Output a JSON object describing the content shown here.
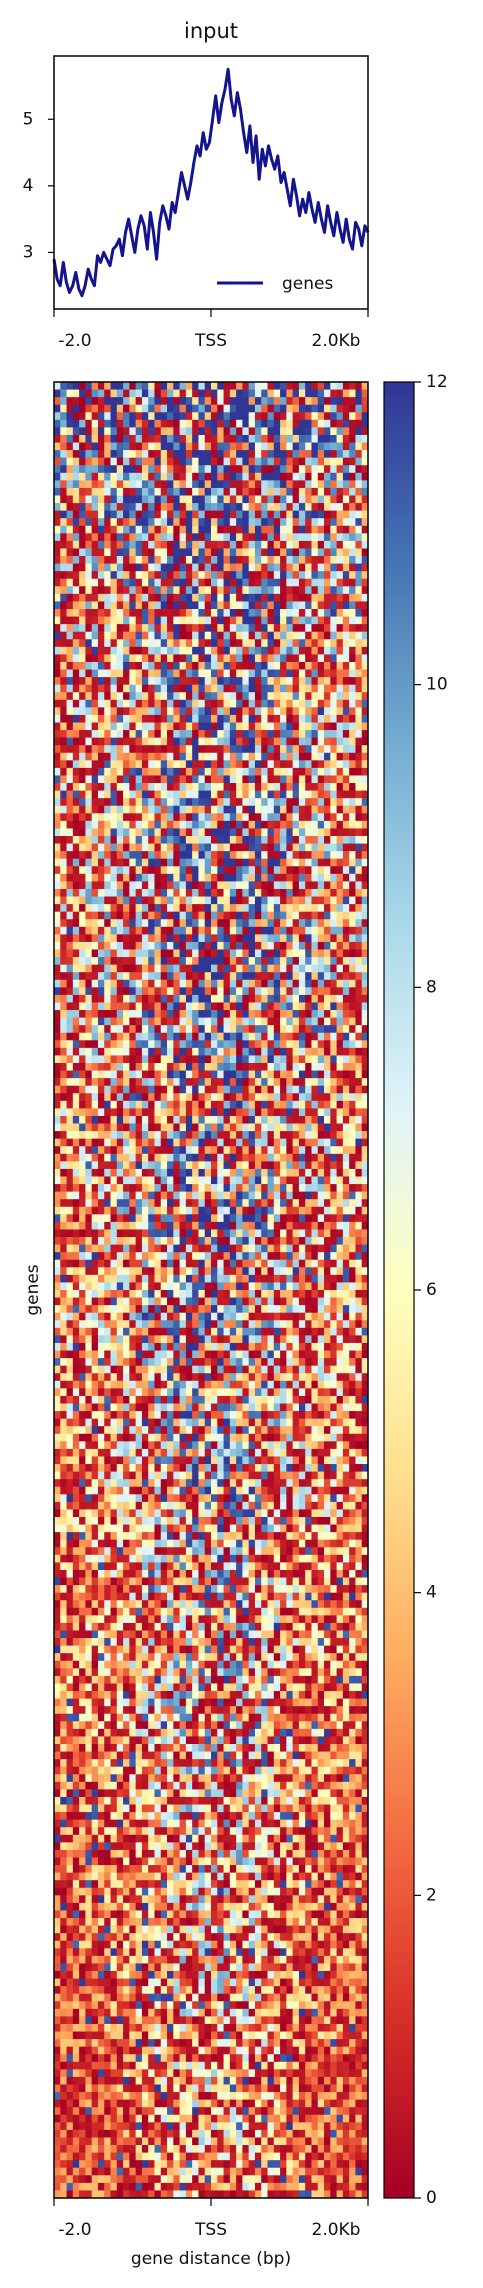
{
  "chart_data": [
    {
      "type": "line",
      "title": "input",
      "x_ticks": [
        "-2.0",
        "TSS",
        "2.0Kb"
      ],
      "y_ticks": [
        3,
        4,
        5
      ],
      "ylim": [
        2.15,
        5.95
      ],
      "legend": "bottom-right",
      "series": [
        {
          "name": "genes",
          "color": "#14148c",
          "y": [
            2.9,
            2.6,
            2.5,
            2.85,
            2.55,
            2.4,
            2.5,
            2.7,
            2.45,
            2.35,
            2.5,
            2.75,
            2.6,
            2.5,
            2.95,
            2.85,
            3.0,
            2.9,
            2.8,
            3.05,
            3.1,
            3.2,
            2.95,
            3.3,
            3.5,
            3.25,
            3.0,
            3.35,
            3.55,
            3.4,
            3.05,
            3.6,
            3.3,
            2.9,
            3.45,
            3.7,
            3.55,
            3.35,
            3.75,
            3.6,
            3.9,
            4.2,
            4.0,
            3.8,
            4.05,
            4.35,
            4.6,
            4.45,
            4.8,
            4.55,
            4.65,
            5.0,
            5.35,
            4.95,
            5.25,
            5.45,
            5.75,
            5.3,
            5.05,
            5.4,
            5.15,
            4.8,
            4.5,
            4.9,
            4.35,
            4.75,
            4.1,
            4.55,
            4.3,
            4.6,
            4.4,
            4.25,
            4.45,
            4.05,
            4.2,
            3.95,
            3.7,
            4.1,
            3.85,
            3.55,
            3.8,
            3.6,
            3.9,
            3.65,
            3.45,
            3.75,
            3.5,
            3.3,
            3.7,
            3.45,
            3.25,
            3.6,
            3.35,
            3.15,
            3.5,
            3.2,
            3.05,
            3.45,
            3.35,
            3.1,
            3.4,
            3.3
          ]
        }
      ]
    },
    {
      "type": "heatmap",
      "ylabel": "genes",
      "xlabel": "gene distance (bp)",
      "x_ticks": [
        "-2.0",
        "TSS",
        "2.0Kb"
      ],
      "n_cols": 50,
      "n_rows": 240,
      "colormap": "RdYlBu",
      "colormap_stops": [
        "#a50026",
        "#d73027",
        "#f46d43",
        "#fdae61",
        "#fee090",
        "#ffffbf",
        "#e0f3f8",
        "#abd9e9",
        "#74add1",
        "#4575b4",
        "#313695"
      ],
      "value_range": [
        0,
        12
      ],
      "colorbar_ticks": [
        0,
        2,
        4,
        6,
        8,
        10,
        12
      ],
      "row_band_means": [
        7.0,
        6.0,
        5.2,
        4.8,
        4.2,
        4.2,
        4.8,
        5.0,
        4.5,
        4.2,
        4.2,
        4.0,
        4.0,
        3.8,
        3.6,
        3.4,
        3.2,
        3.0,
        2.8,
        2.6,
        2.4,
        2.2,
        2.0,
        1.8
      ],
      "tss_column_boost": 2.8
    }
  ]
}
